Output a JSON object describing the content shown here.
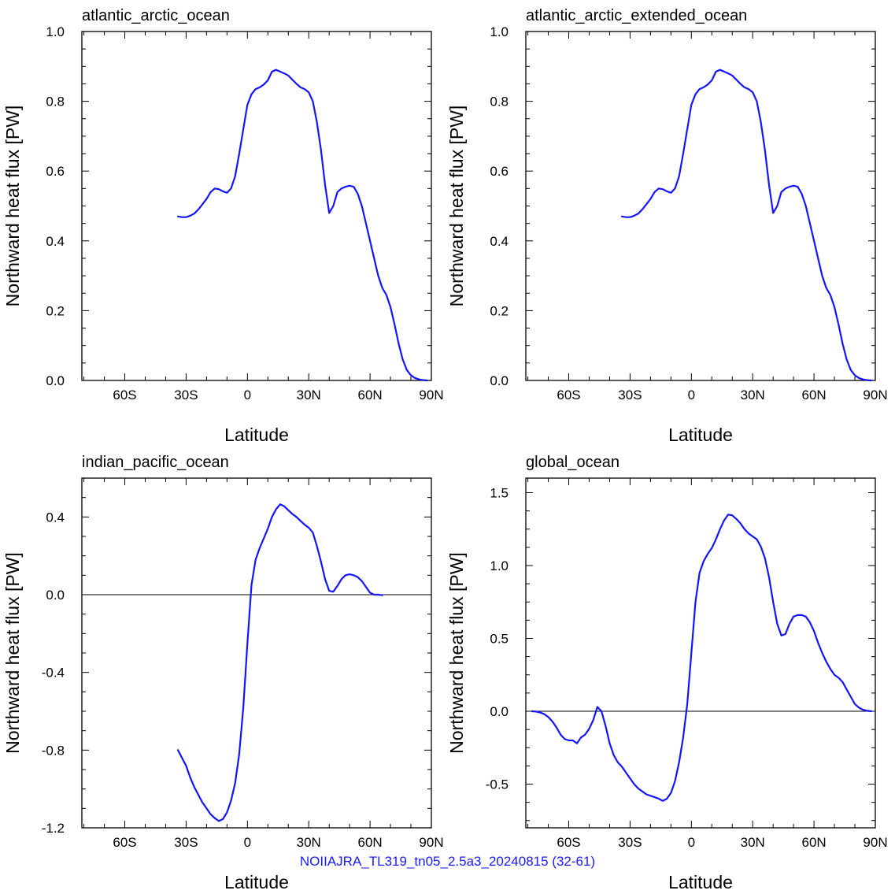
{
  "footer_text": "NOIIAJRA_TL319_tn05_2.5a3_20240815 (32-61)",
  "colors": {
    "line": "#1414ff",
    "axis": "#000000",
    "footer": "#1a1aff"
  },
  "chart_data": [
    {
      "type": "line",
      "title": "atlantic_arctic_ocean",
      "xlabel": "Latitude",
      "ylabel": "Northward heat flux [PW]",
      "xlim": [
        -81,
        90
      ],
      "ylim": [
        0.0,
        1.0
      ],
      "xticks": [
        -60,
        -30,
        0,
        30,
        60,
        90
      ],
      "xticklabels": [
        "60S",
        "30S",
        "0",
        "30N",
        "60N",
        "90N"
      ],
      "yticks": [
        0.0,
        0.2,
        0.4,
        0.6,
        0.8,
        1.0
      ],
      "yticklabels": [
        "0.0",
        "0.2",
        "0.4",
        "0.6",
        "0.8",
        "1.0"
      ],
      "zero_line": false,
      "series": [
        {
          "x": [
            -34,
            -32,
            -30,
            -28,
            -26,
            -24,
            -22,
            -20,
            -18,
            -16,
            -14,
            -12,
            -10,
            -8,
            -6,
            -4,
            -2,
            0,
            2,
            4,
            6,
            8,
            10,
            12,
            14,
            16,
            18,
            20,
            22,
            24,
            26,
            28,
            30,
            32,
            34,
            36,
            38,
            40,
            42,
            44,
            46,
            48,
            50,
            52,
            54,
            56,
            58,
            60,
            62,
            64,
            66,
            68,
            70,
            72,
            74,
            76,
            78,
            80,
            82,
            84,
            86,
            88
          ],
          "y": [
            0.47,
            0.468,
            0.468,
            0.472,
            0.478,
            0.49,
            0.505,
            0.52,
            0.54,
            0.55,
            0.548,
            0.542,
            0.538,
            0.55,
            0.585,
            0.65,
            0.72,
            0.79,
            0.82,
            0.835,
            0.84,
            0.848,
            0.86,
            0.885,
            0.89,
            0.885,
            0.88,
            0.874,
            0.862,
            0.85,
            0.84,
            0.835,
            0.826,
            0.8,
            0.74,
            0.66,
            0.56,
            0.48,
            0.5,
            0.54,
            0.55,
            0.555,
            0.558,
            0.555,
            0.535,
            0.5,
            0.45,
            0.4,
            0.35,
            0.3,
            0.265,
            0.245,
            0.21,
            0.16,
            0.105,
            0.06,
            0.03,
            0.015,
            0.007,
            0.003,
            0.001,
            0.0
          ]
        }
      ]
    },
    {
      "type": "line",
      "title": "atlantic_arctic_extended_ocean",
      "xlabel": "Latitude",
      "ylabel": "Northward heat flux [PW]",
      "xlim": [
        -81,
        90
      ],
      "ylim": [
        0.0,
        1.0
      ],
      "xticks": [
        -60,
        -30,
        0,
        30,
        60,
        90
      ],
      "xticklabels": [
        "60S",
        "30S",
        "0",
        "30N",
        "60N",
        "90N"
      ],
      "yticks": [
        0.0,
        0.2,
        0.4,
        0.6,
        0.8,
        1.0
      ],
      "yticklabels": [
        "0.0",
        "0.2",
        "0.4",
        "0.6",
        "0.8",
        "1.0"
      ],
      "zero_line": false,
      "series": [
        {
          "x": [
            -34,
            -32,
            -30,
            -28,
            -26,
            -24,
            -22,
            -20,
            -18,
            -16,
            -14,
            -12,
            -10,
            -8,
            -6,
            -4,
            -2,
            0,
            2,
            4,
            6,
            8,
            10,
            12,
            14,
            16,
            18,
            20,
            22,
            24,
            26,
            28,
            30,
            32,
            34,
            36,
            38,
            40,
            42,
            44,
            46,
            48,
            50,
            52,
            54,
            56,
            58,
            60,
            62,
            64,
            66,
            68,
            70,
            72,
            74,
            76,
            78,
            80,
            82,
            84,
            86,
            88
          ],
          "y": [
            0.47,
            0.468,
            0.468,
            0.472,
            0.478,
            0.49,
            0.505,
            0.52,
            0.54,
            0.55,
            0.548,
            0.542,
            0.538,
            0.55,
            0.585,
            0.65,
            0.72,
            0.79,
            0.82,
            0.835,
            0.84,
            0.848,
            0.86,
            0.885,
            0.89,
            0.885,
            0.88,
            0.874,
            0.862,
            0.85,
            0.84,
            0.835,
            0.826,
            0.8,
            0.74,
            0.66,
            0.56,
            0.48,
            0.5,
            0.54,
            0.55,
            0.555,
            0.558,
            0.555,
            0.535,
            0.5,
            0.45,
            0.4,
            0.35,
            0.3,
            0.265,
            0.245,
            0.21,
            0.16,
            0.105,
            0.06,
            0.03,
            0.015,
            0.007,
            0.003,
            0.001,
            0.0
          ]
        }
      ]
    },
    {
      "type": "line",
      "title": "indian_pacific_ocean",
      "xlabel": "Latitude",
      "ylabel": "Northward heat flux [PW]",
      "xlim": [
        -81,
        90
      ],
      "ylim": [
        -1.2,
        0.6
      ],
      "xticks": [
        -60,
        -30,
        0,
        30,
        60,
        90
      ],
      "xticklabels": [
        "60S",
        "30S",
        "0",
        "30N",
        "60N",
        "90N"
      ],
      "yticks": [
        -1.2,
        -0.8,
        -0.4,
        0.0,
        0.4
      ],
      "yticklabels": [
        "-1.2",
        "-0.8",
        "-0.4",
        "0.0",
        "0.4"
      ],
      "zero_line": true,
      "series": [
        {
          "x": [
            -34,
            -32,
            -30,
            -28,
            -26,
            -24,
            -22,
            -20,
            -18,
            -16,
            -14,
            -12,
            -10,
            -8,
            -6,
            -4,
            -2,
            0,
            2,
            4,
            6,
            8,
            10,
            12,
            14,
            16,
            18,
            20,
            22,
            24,
            26,
            28,
            30,
            32,
            34,
            36,
            38,
            40,
            42,
            44,
            46,
            48,
            50,
            52,
            54,
            56,
            58,
            60,
            62,
            64,
            66
          ],
          "y": [
            -0.8,
            -0.84,
            -0.88,
            -0.94,
            -0.99,
            -1.03,
            -1.07,
            -1.1,
            -1.13,
            -1.15,
            -1.165,
            -1.155,
            -1.12,
            -1.06,
            -0.97,
            -0.82,
            -0.58,
            -0.25,
            0.05,
            0.18,
            0.24,
            0.29,
            0.34,
            0.4,
            0.44,
            0.465,
            0.455,
            0.435,
            0.415,
            0.4,
            0.38,
            0.36,
            0.345,
            0.32,
            0.25,
            0.17,
            0.08,
            0.02,
            0.015,
            0.045,
            0.08,
            0.1,
            0.105,
            0.1,
            0.09,
            0.07,
            0.04,
            0.01,
            0.0,
            0.0,
            -0.003
          ]
        }
      ]
    },
    {
      "type": "line",
      "title": "global_ocean",
      "xlabel": "Latitude",
      "ylabel": "Northward heat flux [PW]",
      "xlim": [
        -81,
        90
      ],
      "ylim": [
        -0.8,
        1.6
      ],
      "xticks": [
        -60,
        -30,
        0,
        30,
        60,
        90
      ],
      "xticklabels": [
        "60S",
        "30S",
        "0",
        "30N",
        "60N",
        "90N"
      ],
      "yticks": [
        -0.5,
        0.0,
        0.5,
        1.0,
        1.5
      ],
      "yticklabels": [
        "-0.5",
        "0.0",
        "0.5",
        "1.0",
        "1.5"
      ],
      "zero_line": true,
      "series": [
        {
          "x": [
            -78,
            -76,
            -74,
            -72,
            -70,
            -68,
            -66,
            -64,
            -62,
            -60,
            -58,
            -56,
            -54,
            -52,
            -50,
            -48,
            -46,
            -44,
            -42,
            -40,
            -38,
            -36,
            -34,
            -32,
            -30,
            -28,
            -26,
            -24,
            -22,
            -20,
            -18,
            -16,
            -14,
            -12,
            -10,
            -8,
            -6,
            -4,
            -2,
            0,
            2,
            4,
            6,
            8,
            10,
            12,
            14,
            16,
            18,
            20,
            22,
            24,
            26,
            28,
            30,
            32,
            34,
            36,
            38,
            40,
            42,
            44,
            46,
            48,
            50,
            52,
            54,
            56,
            58,
            60,
            62,
            64,
            66,
            68,
            70,
            72,
            74,
            76,
            78,
            80,
            82,
            84,
            86,
            88
          ],
          "y": [
            0.0,
            -0.002,
            -0.008,
            -0.02,
            -0.04,
            -0.07,
            -0.11,
            -0.16,
            -0.19,
            -0.2,
            -0.2,
            -0.22,
            -0.18,
            -0.16,
            -0.12,
            -0.06,
            0.03,
            0.0,
            -0.1,
            -0.22,
            -0.3,
            -0.35,
            -0.38,
            -0.42,
            -0.46,
            -0.5,
            -0.53,
            -0.55,
            -0.57,
            -0.58,
            -0.59,
            -0.6,
            -0.615,
            -0.6,
            -0.56,
            -0.48,
            -0.35,
            -0.18,
            0.05,
            0.4,
            0.75,
            0.95,
            1.03,
            1.08,
            1.12,
            1.18,
            1.25,
            1.31,
            1.35,
            1.345,
            1.32,
            1.29,
            1.25,
            1.22,
            1.2,
            1.18,
            1.13,
            1.05,
            0.92,
            0.75,
            0.6,
            0.52,
            0.53,
            0.6,
            0.65,
            0.66,
            0.66,
            0.65,
            0.61,
            0.55,
            0.47,
            0.4,
            0.34,
            0.29,
            0.25,
            0.23,
            0.2,
            0.15,
            0.1,
            0.05,
            0.025,
            0.01,
            0.003,
            0.0
          ]
        }
      ]
    }
  ]
}
